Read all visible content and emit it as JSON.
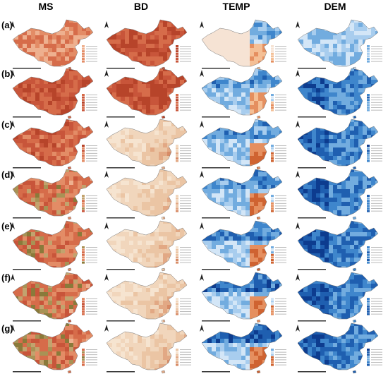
{
  "columns": [
    "MS",
    "BD",
    "TEMP",
    "DEM"
  ],
  "rows": [
    "(a)",
    "(b)",
    "(c)",
    "(d)",
    "(e)",
    "(f)",
    "(g)"
  ]
}
